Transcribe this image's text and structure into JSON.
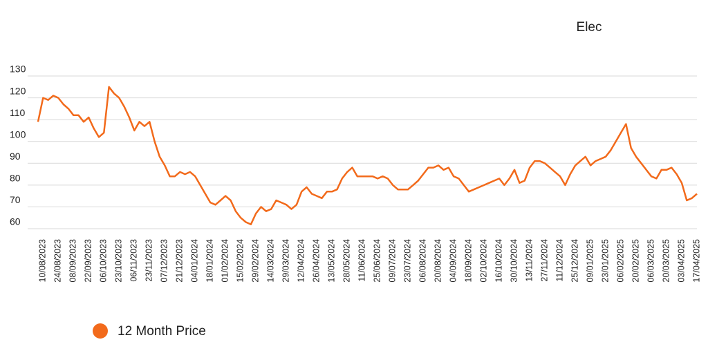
{
  "chart_data": {
    "type": "line",
    "title": "Elec",
    "categories": [
      null,
      "10/08/2023",
      null,
      null,
      "24/08/2023",
      null,
      null,
      "08/09/2023",
      null,
      null,
      "22/09/2023",
      null,
      null,
      "06/10/2023",
      null,
      null,
      "23/10/2023",
      null,
      null,
      "06/11/2023",
      null,
      null,
      "23/11/2023",
      null,
      null,
      "07/12/2023",
      null,
      null,
      "21/12/2023",
      null,
      null,
      "04/01/2024",
      null,
      null,
      "18/01/2024",
      null,
      null,
      "01/02/2024",
      null,
      null,
      "15/02/2024",
      null,
      null,
      "29/02/2024",
      null,
      null,
      "14/03/2024",
      null,
      null,
      "29/03/2024",
      null,
      null,
      "12/04/2024",
      null,
      null,
      "26/04/2024",
      null,
      null,
      "13/05/2024",
      null,
      null,
      "28/05/2024",
      null,
      null,
      "11/06/2024",
      null,
      null,
      "25/06/2024",
      null,
      null,
      "09/07/2024",
      null,
      null,
      "23/07/2024",
      null,
      null,
      "06/08/2024",
      null,
      null,
      "20/08/2024",
      null,
      null,
      "04/09/2024",
      null,
      null,
      "18/09/2024",
      null,
      null,
      "02/10/2024",
      null,
      null,
      "16/10/2024",
      null,
      null,
      "30/10/2024",
      null,
      null,
      "13/11/2024",
      null,
      null,
      "27/11/2024",
      null,
      null,
      "11/12/2024",
      null,
      null,
      "25/12/2024",
      null,
      null,
      "09/01/2025",
      null,
      null,
      "23/01/2025",
      null,
      null,
      "06/02/2025",
      null,
      null,
      "20/02/2025",
      null,
      null,
      "06/03/2025",
      null,
      null,
      "20/03/2025",
      null,
      null,
      "03/04/2025",
      null,
      null,
      "17/04/2025"
    ],
    "series": [
      {
        "name": "12 Month Price",
        "color": "#f26a1b",
        "values": [
          109,
          120,
          119,
          121,
          120,
          117,
          115,
          112,
          112,
          109,
          111,
          106,
          102,
          104,
          125,
          122,
          120,
          116,
          111,
          105,
          109,
          107,
          109,
          100,
          93,
          89,
          84,
          84,
          86,
          85,
          86,
          84,
          80,
          76,
          72,
          71,
          73,
          75,
          73,
          68,
          65,
          63,
          62,
          67,
          70,
          68,
          69,
          73,
          72,
          71,
          69,
          71,
          77,
          79,
          76,
          75,
          74,
          77,
          77,
          78,
          83,
          86,
          88,
          84,
          84,
          84,
          84,
          83,
          84,
          83,
          80,
          78,
          78,
          78,
          80,
          82,
          85,
          88,
          88,
          89,
          87,
          88,
          84,
          83,
          80,
          77,
          78,
          79,
          80,
          81,
          82,
          83,
          80,
          83,
          87,
          81,
          82,
          88,
          91,
          91,
          90,
          88,
          86,
          84,
          80,
          85,
          89,
          91,
          93,
          89,
          91,
          92,
          93,
          96,
          100,
          104,
          108,
          97,
          93,
          90,
          87,
          84,
          83,
          87,
          87,
          88,
          85,
          81,
          73,
          74,
          76
        ]
      }
    ],
    "ylim": [
      60,
      130
    ],
    "yticks": [
      60,
      70,
      80,
      90,
      100,
      110,
      120,
      130
    ],
    "grid": true
  }
}
